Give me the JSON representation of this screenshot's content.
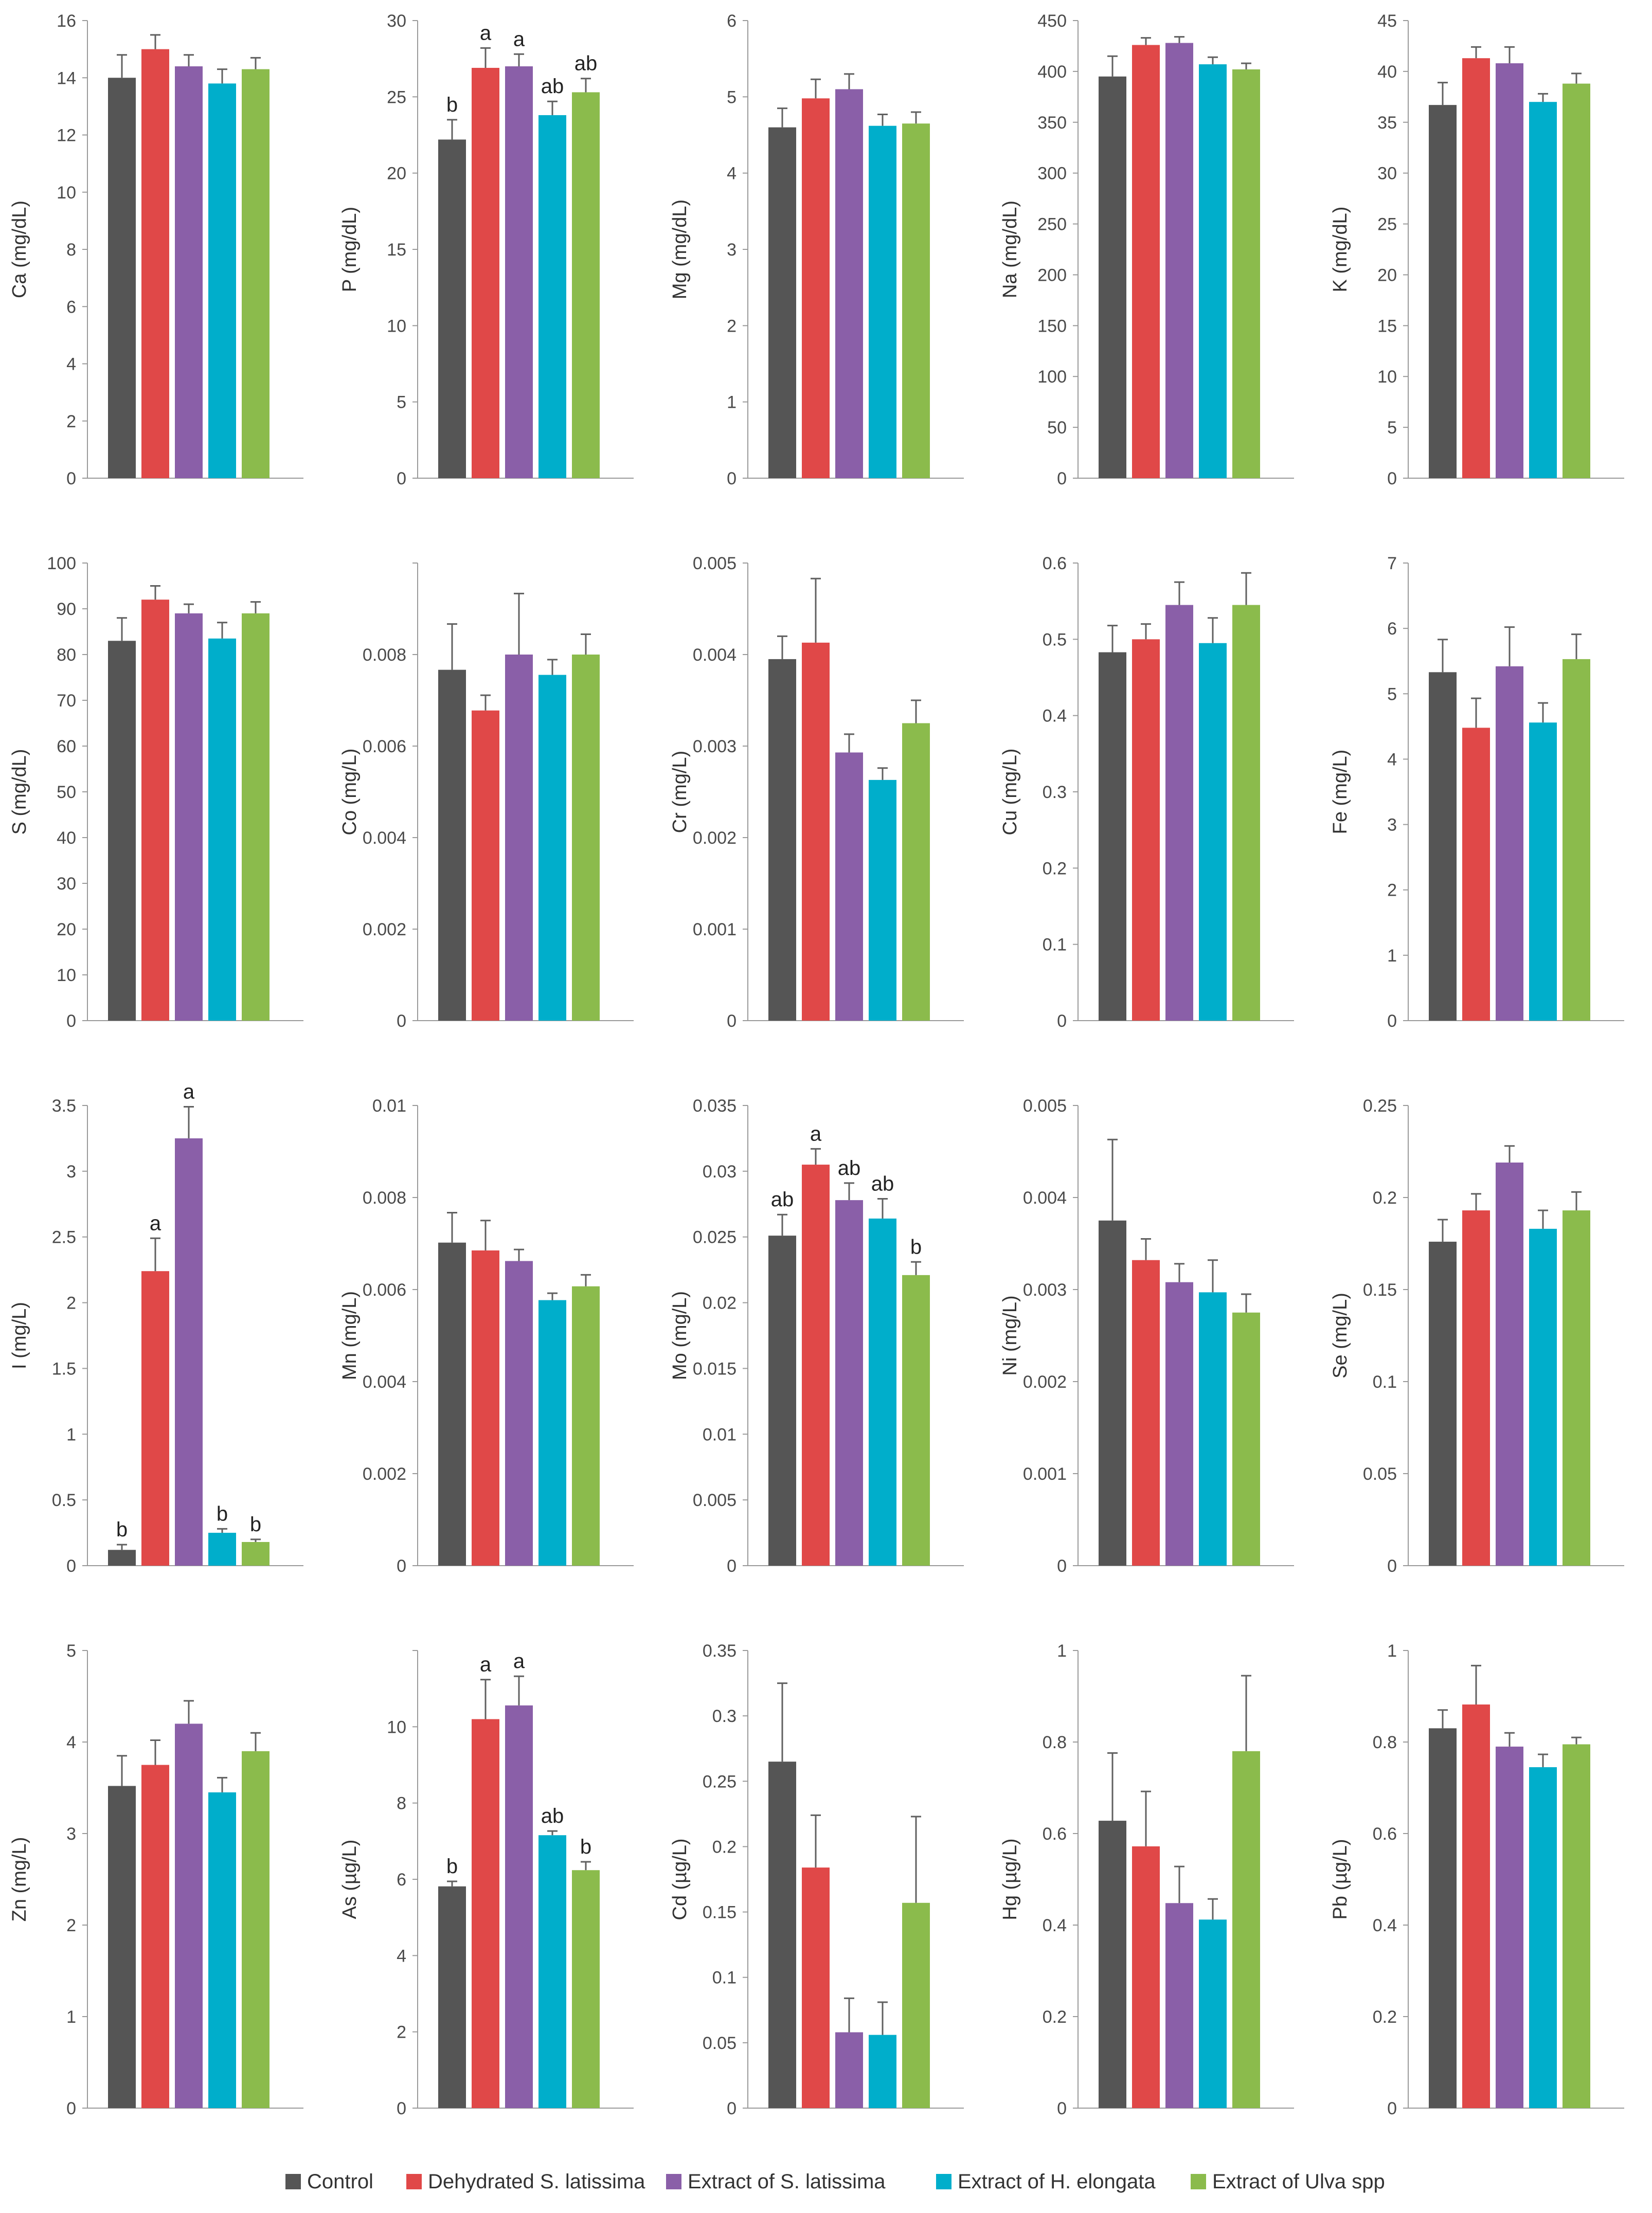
{
  "chart_data": {
    "type": "bar",
    "legend": {
      "placement": "bottom",
      "entries": [
        {
          "name": "Control",
          "color": "#555555"
        },
        {
          "name": "Dehydrated S. latissima",
          "color": "#e04848"
        },
        {
          "name": "Extract of S. latissima",
          "color": "#8a5fa8"
        },
        {
          "name": "Extract of H. elongata",
          "color": "#00aecb"
        },
        {
          "name": "Extract of Ulva spp",
          "color": "#8bbb4c"
        }
      ]
    },
    "panels": [
      {
        "ylabel": "Ca (mg/dL)",
        "ymax": 16,
        "ticks": [
          "0",
          "2",
          "4",
          "6",
          "8",
          "10",
          "12",
          "14",
          "16"
        ],
        "values": [
          14.0,
          15.0,
          14.4,
          13.8,
          14.3
        ],
        "errors": [
          0.8,
          0.5,
          0.4,
          0.5,
          0.4
        ],
        "letters": [
          "",
          "",
          "",
          "",
          ""
        ]
      },
      {
        "ylabel": "P (mg/dL)",
        "ymax": 30,
        "ticks": [
          "0",
          "5",
          "10",
          "15",
          "20",
          "25",
          "30"
        ],
        "values": [
          22.2,
          26.9,
          27.0,
          23.8,
          25.3
        ],
        "errors": [
          1.3,
          1.3,
          0.8,
          0.9,
          0.9
        ],
        "letters": [
          "b",
          "a",
          "a",
          "ab",
          "ab"
        ]
      },
      {
        "ylabel": "Mg (mg/dL)",
        "ymax": 6,
        "ticks": [
          "0",
          "1",
          "2",
          "3",
          "4",
          "5",
          "6"
        ],
        "values": [
          4.6,
          4.98,
          5.1,
          4.62,
          4.65
        ],
        "errors": [
          0.25,
          0.25,
          0.2,
          0.15,
          0.15
        ],
        "letters": [
          "",
          "",
          "",
          "",
          ""
        ]
      },
      {
        "ylabel": "Na (mg/dL)",
        "ymax": 450,
        "ticks": [
          "0",
          "50",
          "100",
          "150",
          "200",
          "250",
          "300",
          "350",
          "400",
          "450"
        ],
        "values": [
          395,
          426,
          428,
          407,
          402
        ],
        "errors": [
          20,
          7,
          6,
          7,
          6
        ],
        "letters": [
          "",
          "",
          "",
          "",
          ""
        ]
      },
      {
        "ylabel": "K (mg/dL)",
        "ymax": 45,
        "ticks": [
          "0",
          "5",
          "10",
          "15",
          "20",
          "25",
          "30",
          "35",
          "40",
          "45"
        ],
        "values": [
          36.7,
          41.3,
          40.8,
          37.0,
          38.8
        ],
        "errors": [
          2.2,
          1.1,
          1.6,
          0.8,
          1.0
        ],
        "letters": [
          "",
          "",
          "",
          "",
          ""
        ]
      },
      {
        "ylabel": "S (mg/dL)",
        "ymax": 100,
        "ticks": [
          "0",
          "10",
          "20",
          "30",
          "40",
          "50",
          "60",
          "70",
          "80",
          "90",
          "100"
        ],
        "values": [
          83,
          92,
          89,
          83.5,
          89
        ],
        "errors": [
          5,
          3,
          2,
          3.5,
          2.5
        ],
        "letters": [
          "",
          "",
          "",
          "",
          ""
        ]
      },
      {
        "ylabel": "Co (mg/L)",
        "ymax": 0.009,
        "ticks": [
          "0",
          "0.002",
          "0.004",
          "0.006",
          "0.008",
          ""
        ],
        "values": [
          0.0069,
          0.0061,
          0.0072,
          0.0068,
          0.0072
        ],
        "errors": [
          0.0009,
          0.0003,
          0.0012,
          0.0003,
          0.0004
        ],
        "letters": [
          "",
          "",
          "",
          "",
          ""
        ]
      },
      {
        "ylabel": "Cr (mg/L)",
        "ymax": 0.005,
        "ticks": [
          "0",
          "0.001",
          "0.002",
          "0.003",
          "0.004",
          "0.005"
        ],
        "values": [
          0.00395,
          0.00413,
          0.00293,
          0.00263,
          0.00325
        ],
        "errors": [
          0.00025,
          0.0007,
          0.0002,
          0.00013,
          0.00025
        ],
        "letters": [
          "",
          "",
          "",
          "",
          ""
        ]
      },
      {
        "ylabel": "Cu (mg/L)",
        "ymax": 0.6,
        "ticks": [
          "0",
          "0.1",
          "0.2",
          "0.3",
          "0.4",
          "0.5",
          "0.6"
        ],
        "values": [
          0.483,
          0.5,
          0.545,
          0.495,
          0.545
        ],
        "errors": [
          0.035,
          0.02,
          0.03,
          0.033,
          0.042
        ],
        "letters": [
          "",
          "",
          "",
          "",
          ""
        ]
      },
      {
        "ylabel": "Fe (mg/L)",
        "ymax": 7,
        "ticks": [
          "0",
          "1",
          "2",
          "3",
          "4",
          "5",
          "6",
          "7"
        ],
        "values": [
          5.33,
          4.48,
          5.42,
          4.56,
          5.53
        ],
        "errors": [
          0.5,
          0.45,
          0.6,
          0.3,
          0.38
        ],
        "letters": [
          "",
          "",
          "",
          "",
          ""
        ]
      },
      {
        "ylabel": "I (mg/L)",
        "ymax": 3.5,
        "ticks": [
          "0",
          "0.5",
          "1",
          "1.5",
          "2",
          "2.5",
          "3",
          "3.5"
        ],
        "values": [
          0.12,
          2.24,
          3.25,
          0.25,
          0.18
        ],
        "errors": [
          0.04,
          0.25,
          0.24,
          0.03,
          0.02
        ],
        "letters": [
          "b",
          "a",
          "a",
          "b",
          "b"
        ]
      },
      {
        "ylabel": "Mn (mg/L)",
        "ymax": 0.01,
        "ticks": [
          "0",
          "0.002",
          "0.004",
          "0.006",
          "0.008",
          "0.01"
        ],
        "values": [
          0.00702,
          0.00685,
          0.00662,
          0.00577,
          0.00607
        ],
        "errors": [
          0.00065,
          0.00065,
          0.00025,
          0.00015,
          0.00025
        ],
        "letters": [
          "",
          "",
          "",
          "",
          ""
        ]
      },
      {
        "ylabel": "Mo (mg/L)",
        "ymax": 0.035,
        "ticks": [
          "0",
          "0.005",
          "0.01",
          "0.015",
          "0.02",
          "0.025",
          "0.03",
          "0.035"
        ],
        "values": [
          0.0251,
          0.0305,
          0.0278,
          0.0264,
          0.0221
        ],
        "errors": [
          0.0016,
          0.0012,
          0.0013,
          0.0015,
          0.001
        ],
        "letters": [
          "ab",
          "a",
          "ab",
          "ab",
          "b"
        ]
      },
      {
        "ylabel": "Ni (mg/L)",
        "ymax": 0.005,
        "ticks": [
          "0",
          "0.001",
          "0.002",
          "0.003",
          "0.004",
          "0.005"
        ],
        "values": [
          0.00375,
          0.00332,
          0.00308,
          0.00297,
          0.00275
        ],
        "errors": [
          0.00088,
          0.00023,
          0.0002,
          0.00035,
          0.0002
        ],
        "letters": [
          "",
          "",
          "",
          "",
          ""
        ]
      },
      {
        "ylabel": "Se (mg/L)",
        "ymax": 0.25,
        "ticks": [
          "0",
          "0.05",
          "0.1",
          "0.15",
          "0.2",
          "0.25"
        ],
        "values": [
          0.176,
          0.193,
          0.219,
          0.183,
          0.193
        ],
        "errors": [
          0.012,
          0.009,
          0.009,
          0.01,
          0.01
        ],
        "letters": [
          "",
          "",
          "",
          "",
          ""
        ]
      },
      {
        "ylabel": "Zn (mg/L)",
        "ymax": 5,
        "ticks": [
          "0",
          "1",
          "2",
          "3",
          "4",
          "5"
        ],
        "values": [
          3.52,
          3.75,
          4.2,
          3.45,
          3.9
        ],
        "errors": [
          0.33,
          0.27,
          0.25,
          0.16,
          0.2
        ],
        "letters": [
          "",
          "",
          "",
          "",
          ""
        ]
      },
      {
        "ylabel": "As (µg/L)",
        "ymax": 11,
        "ticks": [
          "0",
          "2",
          "4",
          "6",
          "8",
          "10",
          ""
        ],
        "values": [
          5.33,
          9.35,
          9.68,
          6.56,
          5.72
        ],
        "errors": [
          0.12,
          0.95,
          0.7,
          0.1,
          0.2
        ],
        "letters": [
          "b",
          "a",
          "a",
          "ab",
          "b"
        ]
      },
      {
        "ylabel": "Cd (µg/L)",
        "ymax": 0.35,
        "ticks": [
          "0",
          "0.05",
          "0.1",
          "0.15",
          "0.2",
          "0.25",
          "0.3",
          "0.35"
        ],
        "values": [
          0.265,
          0.184,
          0.058,
          0.056,
          0.157
        ],
        "errors": [
          0.06,
          0.04,
          0.026,
          0.025,
          0.066
        ],
        "letters": [
          "",
          "",
          "",
          "",
          ""
        ]
      },
      {
        "ylabel": "Hg (µg/L)",
        "ymax": 1,
        "ticks": [
          "0",
          "0.2",
          "0.4",
          "0.6",
          "0.8",
          "1"
        ],
        "values": [
          0.628,
          0.572,
          0.448,
          0.412,
          0.78
        ],
        "errors": [
          0.148,
          0.12,
          0.08,
          0.045,
          0.165
        ],
        "letters": [
          "",
          "",
          "",
          "",
          ""
        ]
      },
      {
        "ylabel": "Pb (µg/L)",
        "ymax": 1,
        "ticks": [
          "0",
          "0.2",
          "0.4",
          "0.6",
          "0.8",
          "1"
        ],
        "values": [
          0.83,
          0.882,
          0.79,
          0.745,
          0.795
        ],
        "errors": [
          0.04,
          0.085,
          0.03,
          0.028,
          0.015
        ],
        "letters": [
          "",
          "",
          "",
          "",
          ""
        ]
      }
    ]
  }
}
